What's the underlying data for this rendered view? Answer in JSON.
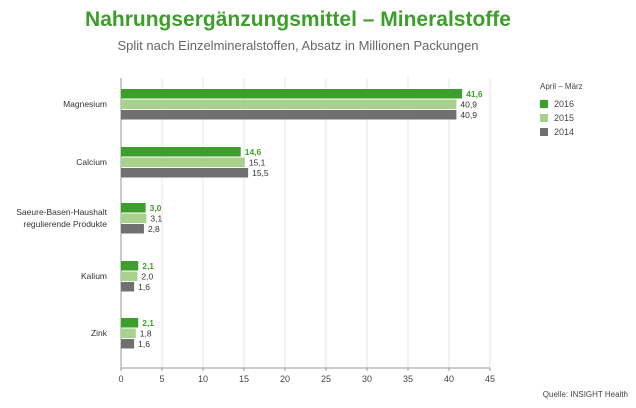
{
  "chart_data": {
    "type": "bar",
    "orientation": "horizontal",
    "title": "Nahrungsergänzungsmittel – Mineralstoffe",
    "subtitle": "Split nach Einzelmineralstoffen, Absatz in Millionen Packungen",
    "categories": [
      [
        "Magnesium"
      ],
      [
        "Calcium"
      ],
      [
        "Saeure-Basen-Haushalt",
        "regulierende Produkte"
      ],
      [
        "Kalium"
      ],
      [
        "Zink"
      ]
    ],
    "series": [
      {
        "name": "2016",
        "color": "#3d9e2c",
        "values": [
          41.6,
          14.6,
          3.0,
          2.1,
          2.1
        ],
        "labels": [
          "41,6",
          "14,6",
          "3,0",
          "2,1",
          "2,1"
        ]
      },
      {
        "name": "2015",
        "color": "#a9d18e",
        "values": [
          40.9,
          15.1,
          3.1,
          2.0,
          1.8
        ],
        "labels": [
          "40,9",
          "15,1",
          "3,1",
          "2,0",
          "1,8"
        ]
      },
      {
        "name": "2014",
        "color": "#707070",
        "values": [
          40.9,
          15.5,
          2.8,
          1.6,
          1.6
        ],
        "labels": [
          "40,9",
          "15,5",
          "2,8",
          "1,6",
          "1,6"
        ]
      }
    ],
    "xlim": [
      0,
      45
    ],
    "xticks": [
      0,
      5,
      10,
      15,
      20,
      25,
      30,
      35,
      40,
      45
    ],
    "legend_title": "April – März",
    "legend_position": "right",
    "grid": true,
    "source": "Quelle: INSIGHT Health"
  }
}
